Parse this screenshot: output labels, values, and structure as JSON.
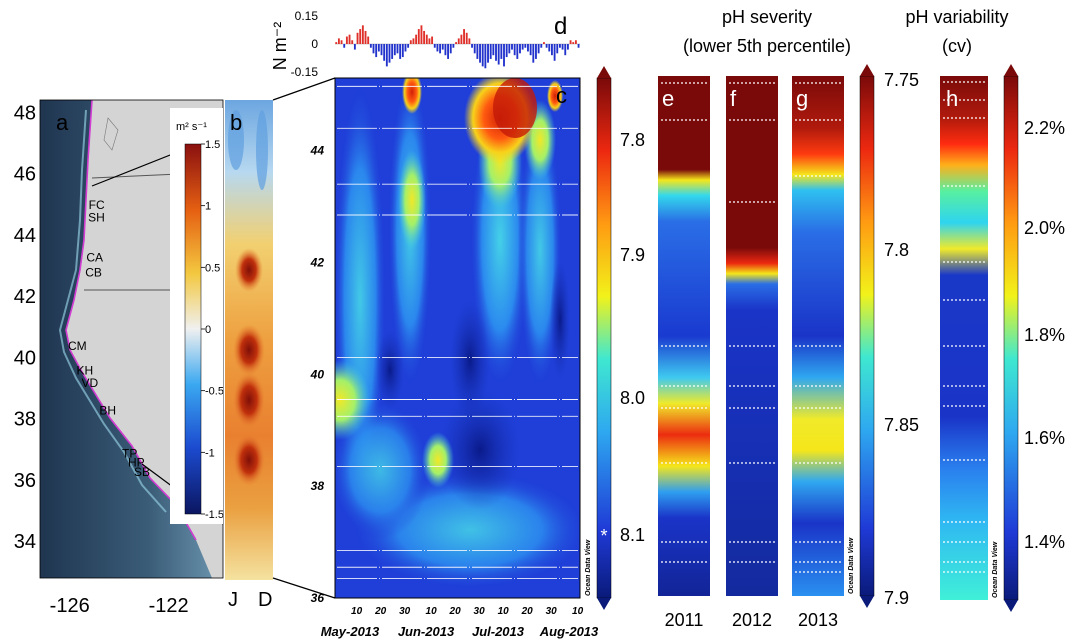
{
  "chart_data": [
    {
      "panel": "a",
      "type": "map",
      "panel_label": "a",
      "y_ticks": [
        "48",
        "46",
        "44",
        "42",
        "40",
        "38",
        "36",
        "34"
      ],
      "y_tick_values": [
        48,
        46,
        44,
        42,
        40,
        38,
        36,
        34
      ],
      "x_ticks": [
        "-126",
        "-122"
      ],
      "x_tick_values": [
        -126,
        -122
      ],
      "ylim": [
        32.8,
        48.4
      ],
      "xlim": [
        -127.2,
        -119.8
      ],
      "site_labels": [
        {
          "code": "FC",
          "lat": 45.0
        },
        {
          "code": "SH",
          "lat": 44.6
        },
        {
          "code": "CA",
          "lat": 43.3
        },
        {
          "code": "CB",
          "lat": 42.8
        },
        {
          "code": "CM",
          "lat": 40.4
        },
        {
          "code": "KH",
          "lat": 39.6
        },
        {
          "code": "VD",
          "lat": 39.2
        },
        {
          "code": "BH",
          "lat": 38.3
        },
        {
          "code": "TP",
          "lat": 36.9
        },
        {
          "code": "HP",
          "lat": 36.6
        },
        {
          "code": "SB",
          "lat": 36.3
        }
      ]
    },
    {
      "panel": "b",
      "type": "heatmap",
      "panel_label": "b",
      "colorbar_unit": "m² s⁻¹",
      "colorbar_ticks": [
        "1.5",
        "1",
        "0.5",
        "0",
        "-0.5",
        "-1",
        "-1.5"
      ],
      "colorbar_tick_values": [
        1.5,
        1,
        0.5,
        0,
        -0.5,
        -1,
        -1.5
      ],
      "x_ticks": [
        "J",
        "D"
      ]
    },
    {
      "panel": "c",
      "type": "heatmap",
      "panel_label": "c",
      "y_ticks": [
        "44",
        "42",
        "40",
        "38",
        "36"
      ],
      "y_tick_values": [
        44,
        42,
        40,
        38,
        36
      ],
      "ylim": [
        36,
        45.3
      ],
      "x_day_ticks": [
        "10",
        "20",
        "30",
        "10",
        "20",
        "30",
        "10",
        "20",
        "30",
        "10"
      ],
      "x_month_labels": [
        "May-2013",
        "Jun-2013",
        "Jul-2013",
        "Aug-2013"
      ],
      "colorbar_ticks": [
        "7.8",
        "7.9",
        "8.0",
        "8.1"
      ],
      "colorbar_tick_values": [
        7.8,
        7.9,
        8.0,
        8.1
      ],
      "colorbar_marker": "*",
      "colorbar_note": "Ocean Data View",
      "station_lat": [
        45.15,
        44.4,
        43.4,
        42.85,
        40.3,
        39.55,
        39.25,
        38.35,
        36.85,
        36.55,
        36.35
      ]
    },
    {
      "panel": "d",
      "type": "bar",
      "panel_label": "d",
      "ylabel": "N m⁻²",
      "y_ticks": [
        "0.15",
        "0",
        "-0.15"
      ],
      "ylim": [
        -0.15,
        0.15
      ],
      "x_start": "2013-05-01",
      "values": [
        0.01,
        0.03,
        0.02,
        -0.02,
        0.04,
        0.05,
        0.02,
        -0.03,
        0.06,
        0.08,
        0.1,
        0.07,
        0.04,
        -0.02,
        -0.05,
        -0.07,
        -0.04,
        -0.06,
        -0.09,
        -0.12,
        -0.1,
        -0.08,
        -0.06,
        -0.05,
        -0.08,
        -0.07,
        -0.04,
        -0.02,
        0.02,
        0.03,
        0.05,
        0.08,
        0.1,
        0.07,
        0.05,
        0.03,
        0.04,
        -0.02,
        -0.04,
        -0.05,
        -0.03,
        -0.06,
        -0.08,
        -0.05,
        -0.02,
        0.01,
        0.03,
        0.05,
        0.08,
        0.06,
        0.03,
        -0.02,
        -0.05,
        -0.08,
        -0.1,
        -0.12,
        -0.13,
        -0.1,
        -0.08,
        -0.06,
        -0.09,
        -0.11,
        -0.08,
        -0.12,
        -0.07,
        -0.05,
        -0.03,
        -0.06,
        -0.08,
        -0.05,
        -0.03,
        -0.02,
        -0.04,
        -0.06,
        -0.1,
        -0.08,
        -0.05,
        -0.02,
        0.01,
        -0.02,
        -0.04,
        -0.06,
        -0.09,
        -0.05,
        -0.02,
        -0.03,
        -0.06,
        -0.03,
        0.02,
        0.01,
        0.02,
        -0.02
      ]
    },
    {
      "panel": "e-g",
      "type": "heatmap",
      "title": [
        "pH severity",
        "(lower 5th percentile)"
      ],
      "panel_labels": [
        "e",
        "f",
        "g"
      ],
      "x_labels": [
        "2011",
        "2012",
        "2013"
      ],
      "colorbar_left_ticks": [
        "7.8",
        "7.9",
        "8.0",
        "8.1"
      ],
      "colorbar_right_ticks": [
        "7.75",
        "7.8",
        "7.85",
        "7.9"
      ],
      "colorbar_right_values": [
        7.75,
        7.8,
        7.85,
        7.9
      ],
      "colorbar_note": "Ocean Data View"
    },
    {
      "panel": "h",
      "type": "heatmap",
      "title": [
        "pH variability",
        "(cv)"
      ],
      "panel_label": "h",
      "colorbar_ticks": [
        "2.2%",
        "2.0%",
        "1.8%",
        "1.6%",
        "1.4%"
      ],
      "colorbar_tick_values": [
        2.2,
        2.0,
        1.8,
        1.6,
        1.4
      ],
      "colorbar_note": "Ocean Data View"
    }
  ],
  "colors": {
    "map_sea": "#33516a",
    "map_land": "#d4d4d4",
    "contour": "#d23cd2",
    "bar_pos": "#e0302a",
    "bar_neg": "#2233cc"
  }
}
